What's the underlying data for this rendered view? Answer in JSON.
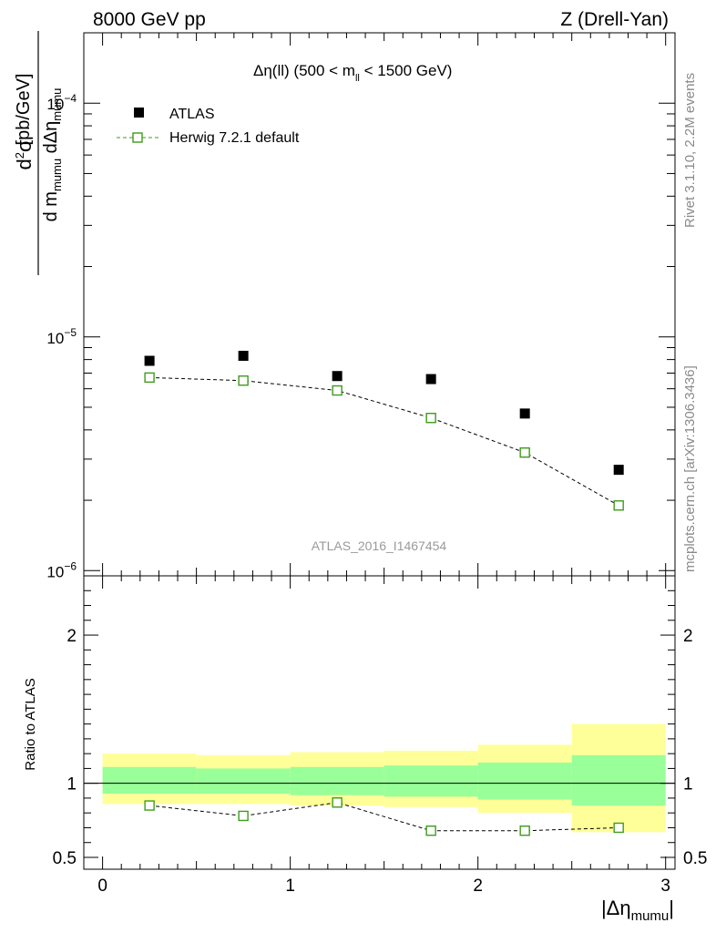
{
  "header": {
    "left": "8000 GeV pp",
    "right": "Z (Drell-Yan)"
  },
  "side_labels": {
    "rivet": "Rivet 3.1.10,  2.2M events",
    "mcplots": "mcplots.cern.ch [arXiv:1306.3436]"
  },
  "title": {
    "prefix": "Δη(ll) (500 < m",
    "sub": "ll",
    "suffix": " < 1500 GeV)"
  },
  "watermark": "ATLAS_2016_I1467454",
  "legend": {
    "data": "ATLAS",
    "mc": "Herwig 7.2.1 default"
  },
  "ylabel_main": {
    "d2": "d",
    "sup": "2",
    "sigma": "σ",
    "denom_d": "d m",
    "denom_sub1": "mumu",
    "denom_mid": " dΔη",
    "denom_sub2": "mumu",
    "unit": "[pb/GeV]"
  },
  "ylabel_ratio": "Ratio to ATLAS",
  "xlabel": {
    "main": "|Δη",
    "sub": "mumu",
    "end": "|"
  },
  "colors": {
    "data": "#000000",
    "mc": "#3f9b1d",
    "band_outer": "#ffff99",
    "band_inner": "#99ff99"
  },
  "chart_data": [
    {
      "type": "scatter",
      "panel": "main",
      "yscale": "log",
      "xlim": [
        -0.1,
        3.05
      ],
      "ylim": [
        9.5e-07,
        0.0002
      ],
      "y_ticks": [
        {
          "value": 1e-06,
          "base": "10",
          "exp": "−6"
        },
        {
          "value": 1e-05,
          "base": "10",
          "exp": "−5"
        },
        {
          "value": 0.0001,
          "base": "10",
          "exp": "−4"
        }
      ],
      "x": [
        0.25,
        0.75,
        1.25,
        1.75,
        2.25,
        2.75
      ],
      "series": [
        {
          "name": "ATLAS",
          "values": [
            7.9e-06,
            8.3e-06,
            6.8e-06,
            6.6e-06,
            4.7e-06,
            2.7e-06
          ]
        },
        {
          "name": "Herwig 7.2.1 default",
          "values": [
            6.7e-06,
            6.5e-06,
            5.9e-06,
            4.5e-06,
            3.2e-06,
            1.9e-06
          ]
        }
      ]
    },
    {
      "type": "line",
      "panel": "ratio",
      "xlim": [
        -0.1,
        3.05
      ],
      "ylim": [
        0.42,
        2.4
      ],
      "y_tick_labels": [
        {
          "value": 0.5,
          "label": "0.5"
        },
        {
          "value": 1,
          "label": "1"
        },
        {
          "value": 2,
          "label": "2"
        }
      ],
      "x_tick_labels": [
        {
          "value": 0,
          "label": "0"
        },
        {
          "value": 1,
          "label": "1"
        },
        {
          "value": 2,
          "label": "2"
        },
        {
          "value": 3,
          "label": "3"
        }
      ],
      "bins": [
        [
          0,
          0.5
        ],
        [
          0.5,
          1
        ],
        [
          1,
          1.5
        ],
        [
          1.5,
          2
        ],
        [
          2,
          2.5
        ],
        [
          2.5,
          3
        ]
      ],
      "band_inner": [
        [
          0.93,
          1.11
        ],
        [
          0.93,
          1.1
        ],
        [
          0.92,
          1.11
        ],
        [
          0.91,
          1.12
        ],
        [
          0.89,
          1.14
        ],
        [
          0.85,
          1.19
        ]
      ],
      "band_outer": [
        [
          0.86,
          1.2
        ],
        [
          0.86,
          1.19
        ],
        [
          0.85,
          1.21
        ],
        [
          0.84,
          1.22
        ],
        [
          0.8,
          1.26
        ],
        [
          0.67,
          1.4
        ]
      ],
      "x": [
        0.25,
        0.75,
        1.25,
        1.75,
        2.25,
        2.75
      ],
      "series": [
        {
          "name": "Herwig 7.2.1 default",
          "values": [
            0.85,
            0.78,
            0.87,
            0.68,
            0.68,
            0.7
          ]
        }
      ]
    }
  ]
}
